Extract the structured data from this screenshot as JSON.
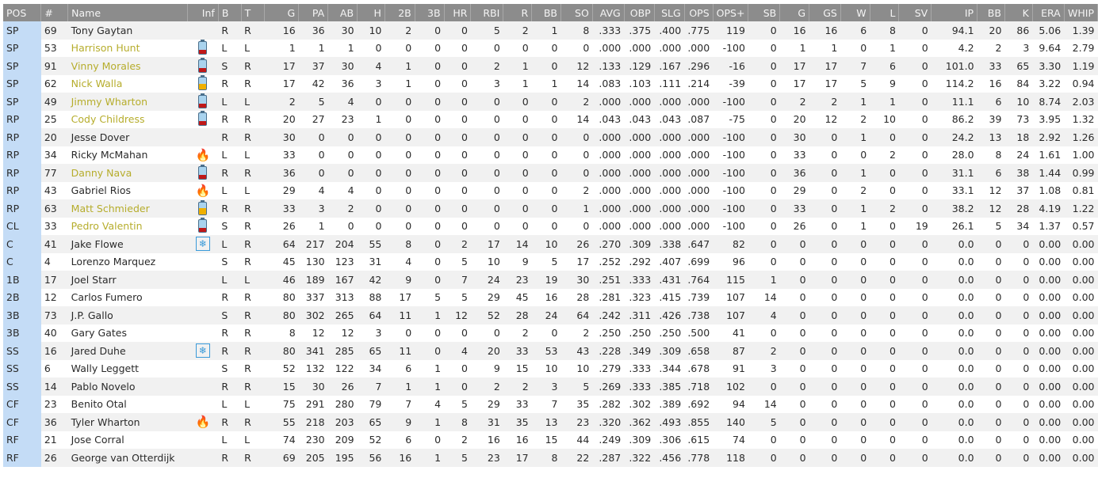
{
  "headers": [
    "POS",
    "#",
    "Name",
    "Inf",
    "B",
    "T",
    "G",
    "PA",
    "AB",
    "H",
    "2B",
    "3B",
    "HR",
    "RBI",
    "R",
    "BB",
    "SO",
    "AVG",
    "OBP",
    "SLG",
    "OPS",
    "OPS+",
    "SB",
    "G",
    "GS",
    "W",
    "L",
    "SV",
    "IP",
    "BB",
    "K",
    "ERA",
    "WHIP"
  ],
  "colors": {
    "header": "#8c8c8c",
    "pos_column": "#c4dcf6",
    "injured_name": "#b6ad2c"
  },
  "rows": [
    [
      "SP",
      "69",
      "Tony Gaytan",
      "",
      "R",
      "R",
      "16",
      "36",
      "30",
      "10",
      "2",
      "0",
      "0",
      "5",
      "2",
      "1",
      "8",
      ".333",
      ".375",
      ".400",
      ".775",
      "119",
      "0",
      "16",
      "16",
      "6",
      "8",
      "0",
      "94.1",
      "20",
      "86",
      "5.06",
      "1.39"
    ],
    [
      "SP",
      "53",
      "Harrison Hunt",
      "battery-low-icon",
      "L",
      "L",
      "1",
      "1",
      "1",
      "0",
      "0",
      "0",
      "0",
      "0",
      "0",
      "0",
      "0",
      ".000",
      ".000",
      ".000",
      ".000",
      "-100",
      "0",
      "1",
      "1",
      "0",
      "1",
      "0",
      "4.2",
      "2",
      "3",
      "9.64",
      "2.79"
    ],
    [
      "SP",
      "91",
      "Vinny Morales",
      "battery-low-icon",
      "S",
      "R",
      "17",
      "37",
      "30",
      "4",
      "1",
      "0",
      "0",
      "2",
      "1",
      "0",
      "12",
      ".133",
      ".129",
      ".167",
      ".296",
      "-16",
      "0",
      "17",
      "17",
      "7",
      "6",
      "0",
      "101.0",
      "33",
      "65",
      "3.30",
      "1.19"
    ],
    [
      "SP",
      "62",
      "Nick Walla",
      "battery-half-icon",
      "R",
      "R",
      "17",
      "42",
      "36",
      "3",
      "1",
      "0",
      "0",
      "3",
      "1",
      "1",
      "14",
      ".083",
      ".103",
      ".111",
      ".214",
      "-39",
      "0",
      "17",
      "17",
      "5",
      "9",
      "0",
      "114.2",
      "16",
      "84",
      "3.22",
      "0.94"
    ],
    [
      "SP",
      "49",
      "Jimmy Wharton",
      "battery-low-icon",
      "L",
      "L",
      "2",
      "5",
      "4",
      "0",
      "0",
      "0",
      "0",
      "0",
      "0",
      "0",
      "2",
      ".000",
      ".000",
      ".000",
      ".000",
      "-100",
      "0",
      "2",
      "2",
      "1",
      "1",
      "0",
      "11.1",
      "6",
      "10",
      "8.74",
      "2.03"
    ],
    [
      "RP",
      "25",
      "Cody Childress",
      "battery-low-icon",
      "R",
      "R",
      "20",
      "27",
      "23",
      "1",
      "0",
      "0",
      "0",
      "0",
      "0",
      "0",
      "14",
      ".043",
      ".043",
      ".043",
      ".087",
      "-75",
      "0",
      "20",
      "12",
      "2",
      "10",
      "0",
      "86.2",
      "39",
      "73",
      "3.95",
      "1.32"
    ],
    [
      "RP",
      "20",
      "Jesse Dover",
      "",
      "R",
      "R",
      "30",
      "0",
      "0",
      "0",
      "0",
      "0",
      "0",
      "0",
      "0",
      "0",
      "0",
      ".000",
      ".000",
      ".000",
      ".000",
      "-100",
      "0",
      "30",
      "0",
      "1",
      "0",
      "0",
      "24.2",
      "13",
      "18",
      "2.92",
      "1.26"
    ],
    [
      "RP",
      "34",
      "Ricky McMahan",
      "fire-icon",
      "L",
      "L",
      "33",
      "0",
      "0",
      "0",
      "0",
      "0",
      "0",
      "0",
      "0",
      "0",
      "0",
      ".000",
      ".000",
      ".000",
      ".000",
      "-100",
      "0",
      "33",
      "0",
      "0",
      "2",
      "0",
      "28.0",
      "8",
      "24",
      "1.61",
      "1.00"
    ],
    [
      "RP",
      "77",
      "Danny Nava",
      "battery-low-icon",
      "R",
      "R",
      "36",
      "0",
      "0",
      "0",
      "0",
      "0",
      "0",
      "0",
      "0",
      "0",
      "0",
      ".000",
      ".000",
      ".000",
      ".000",
      "-100",
      "0",
      "36",
      "0",
      "1",
      "0",
      "0",
      "31.1",
      "6",
      "38",
      "1.44",
      "0.99"
    ],
    [
      "RP",
      "43",
      "Gabriel Rios",
      "fire-icon",
      "L",
      "L",
      "29",
      "4",
      "4",
      "0",
      "0",
      "0",
      "0",
      "0",
      "0",
      "0",
      "2",
      ".000",
      ".000",
      ".000",
      ".000",
      "-100",
      "0",
      "29",
      "0",
      "2",
      "0",
      "0",
      "33.1",
      "12",
      "37",
      "1.08",
      "0.81"
    ],
    [
      "RP",
      "63",
      "Matt Schmieder",
      "battery-half-icon",
      "R",
      "R",
      "33",
      "3",
      "2",
      "0",
      "0",
      "0",
      "0",
      "0",
      "0",
      "0",
      "1",
      ".000",
      ".000",
      ".000",
      ".000",
      "-100",
      "0",
      "33",
      "0",
      "1",
      "2",
      "0",
      "38.2",
      "12",
      "28",
      "4.19",
      "1.22"
    ],
    [
      "CL",
      "33",
      "Pedro Valentin",
      "battery-low-icon",
      "S",
      "R",
      "26",
      "1",
      "0",
      "0",
      "0",
      "0",
      "0",
      "0",
      "0",
      "0",
      "0",
      ".000",
      ".000",
      ".000",
      ".000",
      "-100",
      "0",
      "26",
      "0",
      "1",
      "0",
      "19",
      "26.1",
      "5",
      "34",
      "1.37",
      "0.57"
    ],
    [
      "C",
      "41",
      "Jake Flowe",
      "snowflake-icon",
      "L",
      "R",
      "64",
      "217",
      "204",
      "55",
      "8",
      "0",
      "2",
      "17",
      "14",
      "10",
      "26",
      ".270",
      ".309",
      ".338",
      ".647",
      "82",
      "0",
      "0",
      "0",
      "0",
      "0",
      "0",
      "0.0",
      "0",
      "0",
      "0.00",
      "0.00"
    ],
    [
      "C",
      "4",
      "Lorenzo Marquez",
      "",
      "S",
      "R",
      "45",
      "130",
      "123",
      "31",
      "4",
      "0",
      "5",
      "10",
      "9",
      "5",
      "17",
      ".252",
      ".292",
      ".407",
      ".699",
      "96",
      "0",
      "0",
      "0",
      "0",
      "0",
      "0",
      "0.0",
      "0",
      "0",
      "0.00",
      "0.00"
    ],
    [
      "1B",
      "17",
      "Joel Starr",
      "",
      "L",
      "L",
      "46",
      "189",
      "167",
      "42",
      "9",
      "0",
      "7",
      "24",
      "23",
      "19",
      "30",
      ".251",
      ".333",
      ".431",
      ".764",
      "115",
      "1",
      "0",
      "0",
      "0",
      "0",
      "0",
      "0.0",
      "0",
      "0",
      "0.00",
      "0.00"
    ],
    [
      "2B",
      "12",
      "Carlos Fumero",
      "",
      "R",
      "R",
      "80",
      "337",
      "313",
      "88",
      "17",
      "5",
      "5",
      "29",
      "45",
      "16",
      "28",
      ".281",
      ".323",
      ".415",
      ".739",
      "107",
      "14",
      "0",
      "0",
      "0",
      "0",
      "0",
      "0.0",
      "0",
      "0",
      "0.00",
      "0.00"
    ],
    [
      "3B",
      "73",
      "J.P. Gallo",
      "",
      "S",
      "R",
      "80",
      "302",
      "265",
      "64",
      "11",
      "1",
      "12",
      "52",
      "28",
      "24",
      "64",
      ".242",
      ".311",
      ".426",
      ".738",
      "107",
      "4",
      "0",
      "0",
      "0",
      "0",
      "0",
      "0.0",
      "0",
      "0",
      "0.00",
      "0.00"
    ],
    [
      "3B",
      "40",
      "Gary Gates",
      "",
      "R",
      "R",
      "8",
      "12",
      "12",
      "3",
      "0",
      "0",
      "0",
      "0",
      "2",
      "0",
      "2",
      ".250",
      ".250",
      ".250",
      ".500",
      "41",
      "0",
      "0",
      "0",
      "0",
      "0",
      "0",
      "0.0",
      "0",
      "0",
      "0.00",
      "0.00"
    ],
    [
      "SS",
      "16",
      "Jared Duhe",
      "snowflake-icon",
      "R",
      "R",
      "80",
      "341",
      "285",
      "65",
      "11",
      "0",
      "4",
      "20",
      "33",
      "53",
      "43",
      ".228",
      ".349",
      ".309",
      ".658",
      "87",
      "2",
      "0",
      "0",
      "0",
      "0",
      "0",
      "0.0",
      "0",
      "0",
      "0.00",
      "0.00"
    ],
    [
      "SS",
      "6",
      "Wally Leggett",
      "",
      "S",
      "R",
      "52",
      "132",
      "122",
      "34",
      "6",
      "1",
      "0",
      "9",
      "15",
      "10",
      "10",
      ".279",
      ".333",
      ".344",
      ".678",
      "91",
      "3",
      "0",
      "0",
      "0",
      "0",
      "0",
      "0.0",
      "0",
      "0",
      "0.00",
      "0.00"
    ],
    [
      "SS",
      "14",
      "Pablo Novelo",
      "",
      "R",
      "R",
      "15",
      "30",
      "26",
      "7",
      "1",
      "1",
      "0",
      "2",
      "2",
      "3",
      "5",
      ".269",
      ".333",
      ".385",
      ".718",
      "102",
      "0",
      "0",
      "0",
      "0",
      "0",
      "0",
      "0.0",
      "0",
      "0",
      "0.00",
      "0.00"
    ],
    [
      "CF",
      "23",
      "Benito Otal",
      "",
      "L",
      "L",
      "75",
      "291",
      "280",
      "79",
      "7",
      "4",
      "5",
      "29",
      "33",
      "7",
      "35",
      ".282",
      ".302",
      ".389",
      ".692",
      "94",
      "14",
      "0",
      "0",
      "0",
      "0",
      "0",
      "0.0",
      "0",
      "0",
      "0.00",
      "0.00"
    ],
    [
      "CF",
      "36",
      "Tyler Wharton",
      "fire-icon",
      "R",
      "R",
      "55",
      "218",
      "203",
      "65",
      "9",
      "1",
      "8",
      "31",
      "35",
      "13",
      "23",
      ".320",
      ".362",
      ".493",
      ".855",
      "140",
      "5",
      "0",
      "0",
      "0",
      "0",
      "0",
      "0.0",
      "0",
      "0",
      "0.00",
      "0.00"
    ],
    [
      "RF",
      "21",
      "Jose Corral",
      "",
      "L",
      "L",
      "74",
      "230",
      "209",
      "52",
      "6",
      "0",
      "2",
      "16",
      "16",
      "15",
      "44",
      ".249",
      ".309",
      ".306",
      ".615",
      "74",
      "0",
      "0",
      "0",
      "0",
      "0",
      "0",
      "0.0",
      "0",
      "0",
      "0.00",
      "0.00"
    ],
    [
      "RF",
      "26",
      "George van Otterdijk",
      "",
      "R",
      "R",
      "69",
      "205",
      "195",
      "56",
      "16",
      "1",
      "5",
      "23",
      "17",
      "8",
      "22",
      ".287",
      ".322",
      ".456",
      ".778",
      "118",
      "0",
      "0",
      "0",
      "0",
      "0",
      "0",
      "0.0",
      "0",
      "0",
      "0.00",
      "0.00"
    ]
  ]
}
